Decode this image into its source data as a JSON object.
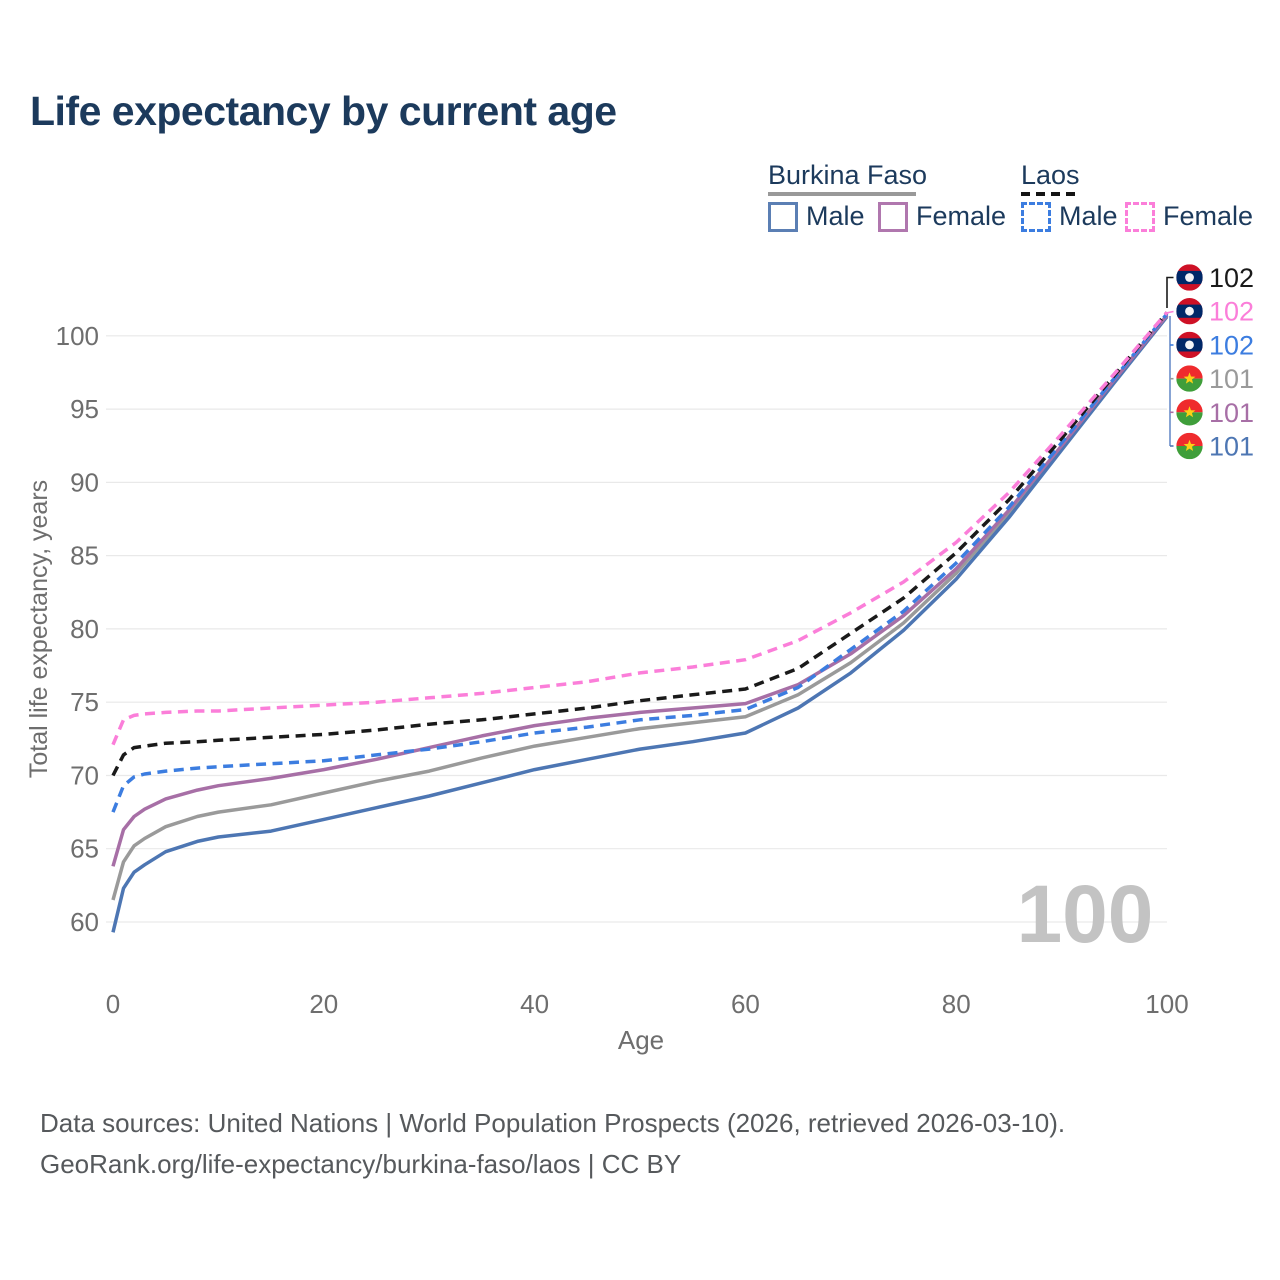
{
  "title": "Life expectancy by current age",
  "legend": {
    "groups": [
      {
        "country": "Burkina Faso",
        "line_style": "solid",
        "items": [
          {
            "label": "Male"
          },
          {
            "label": "Female"
          }
        ]
      },
      {
        "country": "Laos",
        "line_style": "dashed",
        "items": [
          {
            "label": "Male"
          },
          {
            "label": "Female"
          }
        ]
      }
    ]
  },
  "chart_data": {
    "type": "line",
    "title": "Life expectancy by current age",
    "xlabel": "Age",
    "ylabel": "Total life expectancy, years",
    "xlim": [
      0,
      100
    ],
    "ylim": [
      59,
      102.5
    ],
    "x_ticks": [
      0,
      20,
      40,
      60,
      80,
      100
    ],
    "y_ticks": [
      60,
      65,
      70,
      75,
      80,
      85,
      90,
      95,
      100
    ],
    "grid": "horizontal-only",
    "legend_position": "top-right",
    "watermark_age_counter": "100",
    "x": [
      0,
      1,
      2,
      3,
      5,
      8,
      10,
      15,
      20,
      25,
      30,
      35,
      40,
      45,
      50,
      55,
      60,
      65,
      70,
      75,
      80,
      85,
      90,
      95,
      100
    ],
    "series": [
      {
        "name": "Burkina Faso",
        "sex": "Both",
        "color": "#9a9a9a",
        "dash": "solid",
        "end_label": "101",
        "values": [
          61.5,
          64.1,
          65.2,
          65.7,
          66.5,
          67.2,
          67.5,
          68.0,
          68.8,
          69.6,
          70.3,
          71.2,
          72.0,
          72.6,
          73.2,
          73.6,
          74.0,
          75.5,
          77.7,
          80.4,
          83.8,
          87.9,
          92.4,
          96.9,
          101.4
        ]
      },
      {
        "name": "Burkina Faso Male",
        "sex": "Male",
        "color": "#4d76b3",
        "dash": "solid",
        "end_label": "101",
        "values": [
          59.3,
          62.3,
          63.4,
          63.9,
          64.8,
          65.5,
          65.8,
          66.2,
          67.0,
          67.8,
          68.6,
          69.5,
          70.4,
          71.1,
          71.8,
          72.3,
          72.9,
          74.6,
          77.0,
          79.9,
          83.4,
          87.6,
          92.2,
          96.8,
          101.3
        ]
      },
      {
        "name": "Burkina Faso Female",
        "sex": "Female",
        "color": "#a76fa6",
        "dash": "solid",
        "end_label": "101",
        "values": [
          63.8,
          66.3,
          67.2,
          67.7,
          68.4,
          69.0,
          69.3,
          69.8,
          70.4,
          71.1,
          71.9,
          72.7,
          73.4,
          73.9,
          74.3,
          74.6,
          74.9,
          76.2,
          78.3,
          80.9,
          84.1,
          88.1,
          92.5,
          97.0,
          101.4
        ]
      },
      {
        "name": "Laos Male",
        "sex": "Male",
        "color": "#3c7de0",
        "dash": "dashed",
        "end_label": "102",
        "values": [
          67.5,
          69.3,
          69.9,
          70.1,
          70.3,
          70.5,
          70.6,
          70.8,
          71.0,
          71.4,
          71.8,
          72.3,
          72.9,
          73.3,
          73.8,
          74.1,
          74.5,
          76.0,
          78.6,
          81.2,
          84.5,
          88.3,
          92.7,
          97.1,
          101.5
        ]
      },
      {
        "name": "Laos",
        "sex": "Both",
        "color": "#1a1a1a",
        "dash": "dashed",
        "end_label": "102",
        "values": [
          70.0,
          71.4,
          71.9,
          72.0,
          72.2,
          72.3,
          72.4,
          72.6,
          72.8,
          73.1,
          73.5,
          73.8,
          74.2,
          74.6,
          75.1,
          75.5,
          75.9,
          77.3,
          79.7,
          82.1,
          85.2,
          88.8,
          93.0,
          97.3,
          101.6
        ]
      },
      {
        "name": "Laos Female",
        "sex": "Female",
        "color": "#fb7ed9",
        "dash": "dashed",
        "end_label": "102",
        "values": [
          72.1,
          73.8,
          74.1,
          74.2,
          74.3,
          74.4,
          74.4,
          74.6,
          74.8,
          75.0,
          75.3,
          75.6,
          76.0,
          76.4,
          77.0,
          77.4,
          77.9,
          79.2,
          81.1,
          83.2,
          85.9,
          89.3,
          93.3,
          97.4,
          101.6
        ]
      }
    ],
    "end_labels": [
      {
        "value": "102",
        "flag": "laos",
        "series": "Laos",
        "color": "#1a1a1a"
      },
      {
        "value": "102",
        "flag": "laos",
        "series": "Laos Female",
        "color": "#fb7ed9"
      },
      {
        "value": "102",
        "flag": "laos",
        "series": "Laos Male",
        "color": "#3c7de0"
      },
      {
        "value": "101",
        "flag": "burkina-faso",
        "series": "Burkina Faso",
        "color": "#9a9a9a"
      },
      {
        "value": "101",
        "flag": "burkina-faso",
        "series": "Burkina Faso Female",
        "color": "#a76fa6"
      },
      {
        "value": "101",
        "flag": "burkina-faso",
        "series": "Burkina Faso Male",
        "color": "#4d76b3"
      }
    ]
  },
  "footer": {
    "line1": "Data sources: United Nations | World Population Prospects (2026, retrieved 2026-03-10).",
    "line2": "GeoRank.org/life-expectancy/burkina-faso/laos | CC BY"
  }
}
